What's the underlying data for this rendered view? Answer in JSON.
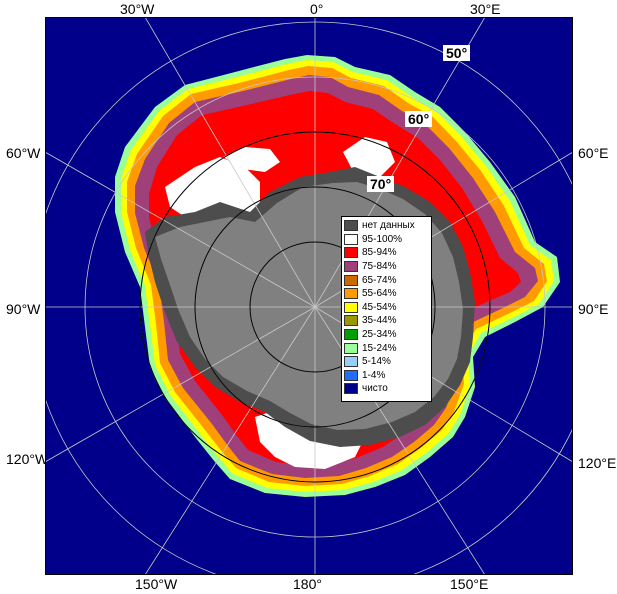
{
  "longitude_labels": {
    "top": [
      "30°W",
      "0°",
      "30°E"
    ],
    "bottom": [
      "150°W",
      "180°",
      "150°E"
    ],
    "left": [
      "60°W",
      "90°W",
      "120°W"
    ],
    "right": [
      "60°E",
      "90°E",
      "120°E"
    ]
  },
  "latitude_labels": [
    "50°",
    "60°",
    "70°"
  ],
  "legend": [
    {
      "label": "нет данных",
      "color": "#4d4d4d"
    },
    {
      "label": "95-100%",
      "color": "#ffffff"
    },
    {
      "label": "85-94%",
      "color": "#ff0000"
    },
    {
      "label": "75-84%",
      "color": "#a0407a"
    },
    {
      "label": "65-74%",
      "color": "#cc6a00"
    },
    {
      "label": "55-64%",
      "color": "#ff9a00"
    },
    {
      "label": "45-54%",
      "color": "#ffff00"
    },
    {
      "label": "35-44%",
      "color": "#9a9a00"
    },
    {
      "label": "25-34%",
      "color": "#00a000"
    },
    {
      "label": "15-24%",
      "color": "#99ff99"
    },
    {
      "label": "5-14%",
      "color": "#99ccff"
    },
    {
      "label": "1-4%",
      "color": "#1e6fff"
    },
    {
      "label": "чисто",
      "color": "#00008b"
    }
  ],
  "colors": {
    "ocean": "#00008b",
    "land": "#808080",
    "no_data": "#4d4d4d",
    "grid": "#c8c8c8"
  }
}
